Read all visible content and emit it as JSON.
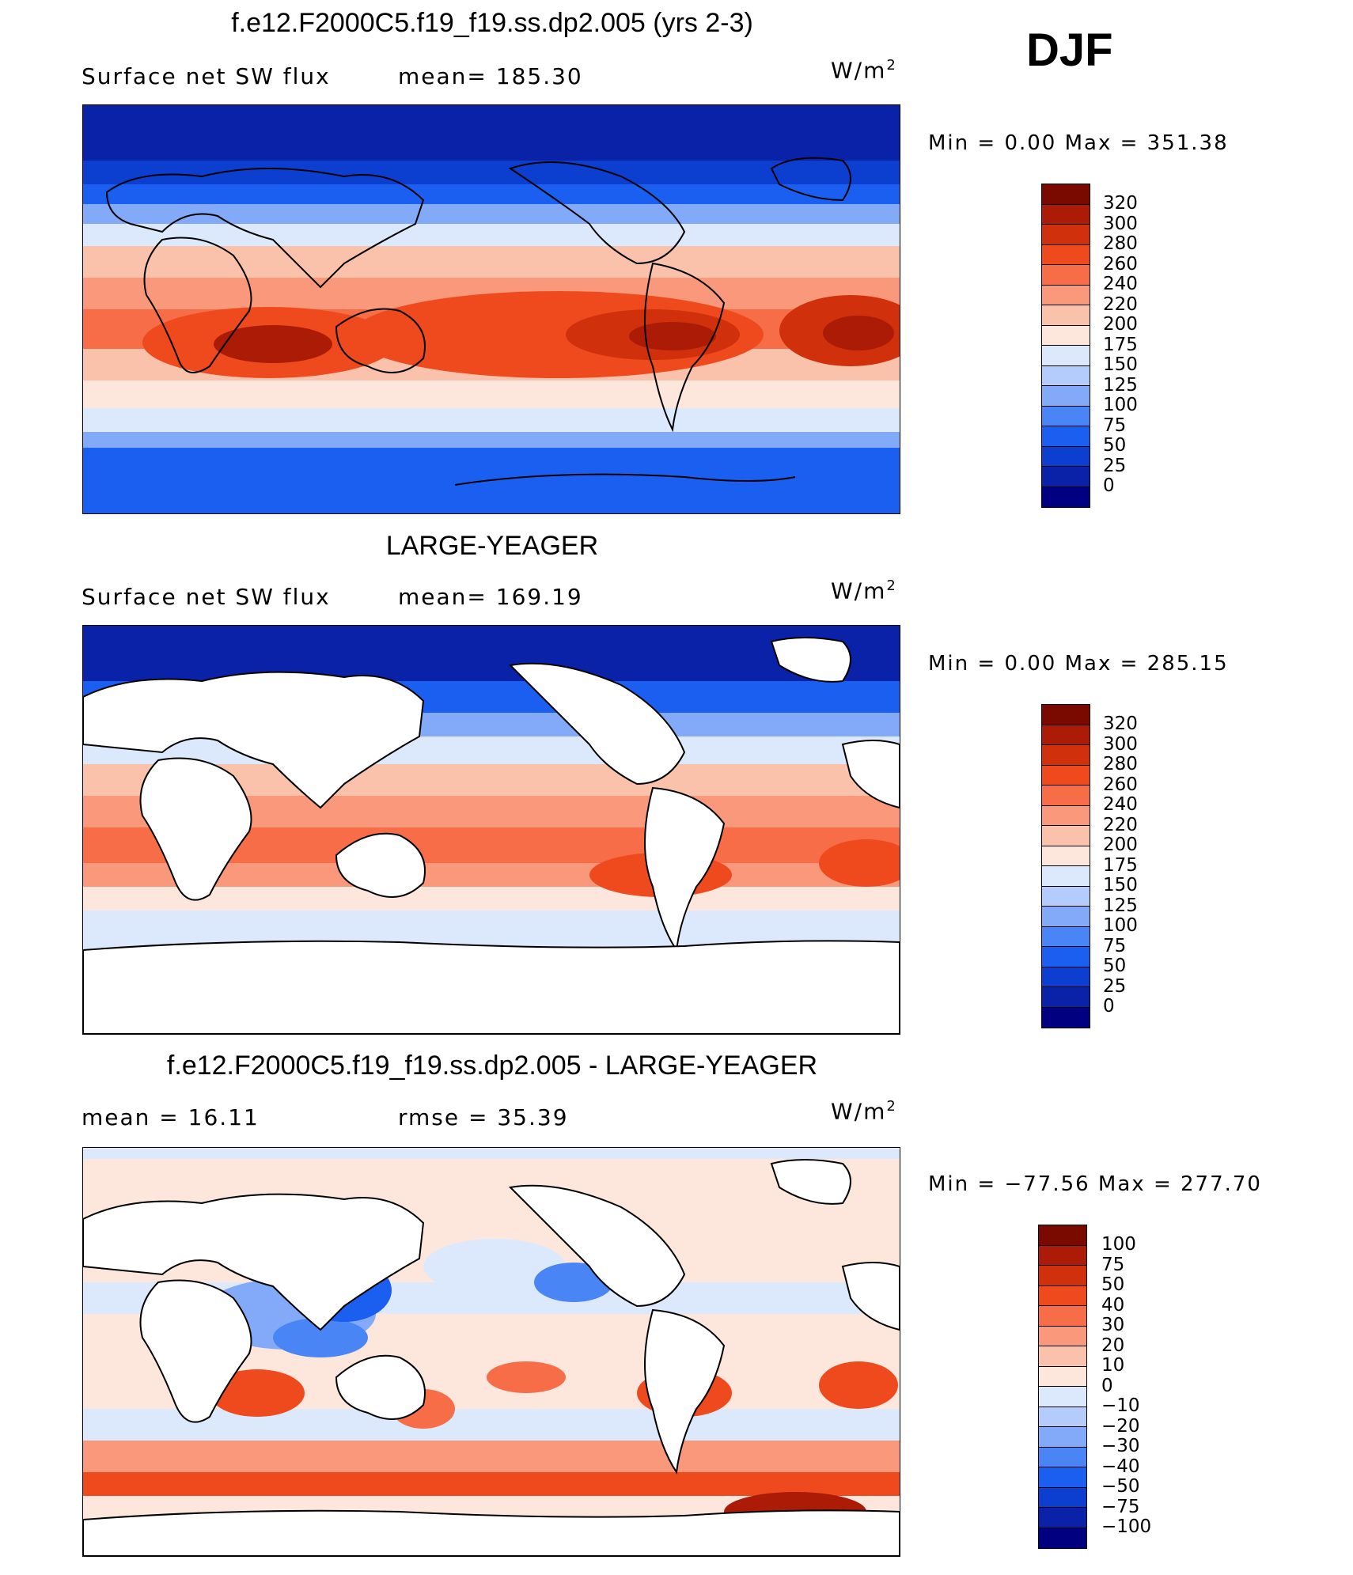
{
  "season": "DJF",
  "units_base": "W/m",
  "units_exp": "2",
  "colors": {
    "abs_scale": [
      "#000080",
      "#0a22a8",
      "#0c3fd0",
      "#1a5ff0",
      "#4a85f5",
      "#82aaf8",
      "#b3ccfb",
      "#dce9fd",
      "#fde6dc",
      "#fbc2ab",
      "#f9987a",
      "#f66d47",
      "#ef4a1e",
      "#d0300c",
      "#ab1b06",
      "#7a0a00"
    ],
    "diff_scale": [
      "#000080",
      "#0a22a8",
      "#0c3fd0",
      "#1a5ff0",
      "#4a85f5",
      "#82aaf8",
      "#b3ccfb",
      "#dce9fd",
      "#fde6dc",
      "#fbc2ab",
      "#f9987a",
      "#f66d47",
      "#ef4a1e",
      "#d0300c",
      "#ab1b06",
      "#7a0a00"
    ]
  },
  "chart_data": [
    {
      "type": "heatmap",
      "title": "f.e12.F2000C5.f19_f19.ss.dp2.005 (yrs 2-3)",
      "subtitle_left": "Surface net SW flux",
      "subtitle_stat": "mean=  185.30",
      "mean": 185.3,
      "minmax_text": "Min  =      0.00  Max  =  351.38",
      "min": 0.0,
      "max": 351.38,
      "levels": [
        "320",
        "300",
        "280",
        "260",
        "240",
        "220",
        "200",
        "175",
        "150",
        "125",
        "100",
        "75",
        "50",
        "25",
        "0"
      ],
      "land_masked": false
    },
    {
      "type": "heatmap",
      "title": "LARGE-YEAGER",
      "subtitle_left": "Surface net SW flux",
      "subtitle_stat": "mean=  169.19",
      "mean": 169.19,
      "minmax_text": "Min  =      0.00  Max  =  285.15",
      "min": 0.0,
      "max": 285.15,
      "levels": [
        "320",
        "300",
        "280",
        "260",
        "240",
        "220",
        "200",
        "175",
        "150",
        "125",
        "100",
        "75",
        "50",
        "25",
        "0"
      ],
      "land_masked": true
    },
    {
      "type": "heatmap",
      "title": "f.e12.F2000C5.f19_f19.ss.dp2.005 - LARGE-YEAGER",
      "subtitle_left": "mean  =     16.11",
      "subtitle_stat": "rmse  =     35.39",
      "mean": 16.11,
      "rmse": 35.39,
      "minmax_text": "Min  = −77.56  Max  =  277.70",
      "min": -77.56,
      "max": 277.7,
      "levels": [
        "100",
        "75",
        "50",
        "40",
        "30",
        "20",
        "10",
        "0",
        "−10",
        "−20",
        "−30",
        "−40",
        "−50",
        "−75",
        "−100"
      ],
      "land_masked": true
    }
  ]
}
